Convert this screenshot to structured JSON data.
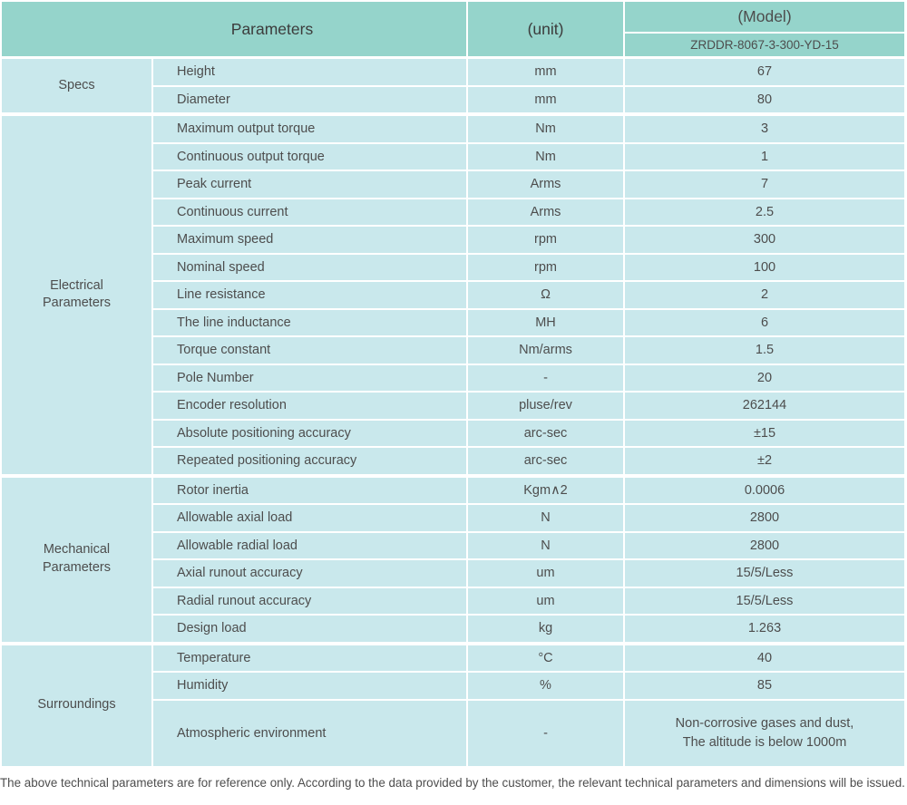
{
  "colors": {
    "header_bg": "#95d4cb",
    "cell_bg": "#c9e8ec",
    "border": "#ffffff",
    "text": "#4d4d4d",
    "header_text": "#3c3c3c"
  },
  "header": {
    "parameters_label": "Parameters",
    "unit_label": "(unit)",
    "model_label": "(Model)",
    "model_value": "ZRDDR-8067-3-300-YD-15"
  },
  "sections": [
    {
      "group_lines": [
        "Specs"
      ],
      "rows": [
        {
          "param": "Height",
          "unit": "mm",
          "value": "67"
        },
        {
          "param": "Diameter",
          "unit": "mm",
          "value": "80"
        }
      ]
    },
    {
      "group_lines": [
        "Electrical",
        "Parameters"
      ],
      "rows": [
        {
          "param": "Maximum output torque",
          "unit": "Nm",
          "value": "3"
        },
        {
          "param": "Continuous output torque",
          "unit": "Nm",
          "value": "1"
        },
        {
          "param": "Peak current",
          "unit": "Arms",
          "value": "7"
        },
        {
          "param": "Continuous current",
          "unit": "Arms",
          "value": "2.5"
        },
        {
          "param": "Maximum speed",
          "unit": "rpm",
          "value": "300"
        },
        {
          "param": "Nominal speed",
          "unit": "rpm",
          "value": "100"
        },
        {
          "param": "Line resistance",
          "unit": "Ω",
          "value": "2"
        },
        {
          "param": "The line inductance",
          "unit": "MH",
          "value": "6"
        },
        {
          "param": "Torque constant",
          "unit": "Nm/arms",
          "value": "1.5"
        },
        {
          "param": "Pole Number",
          "unit": "-",
          "value": "20"
        },
        {
          "param": "Encoder resolution",
          "unit": "pluse/rev",
          "value": "262144"
        },
        {
          "param": "Absolute positioning accuracy",
          "unit": "arc-sec",
          "value": "±15"
        },
        {
          "param": "Repeated positioning accuracy",
          "unit": "arc-sec",
          "value": "±2"
        }
      ]
    },
    {
      "group_lines": [
        "Mechanical",
        "Parameters"
      ],
      "rows": [
        {
          "param": "Rotor inertia",
          "unit": "Kgm∧2",
          "value": "0.0006"
        },
        {
          "param": "Allowable axial load",
          "unit": "N",
          "value": "2800"
        },
        {
          "param": "Allowable radial load",
          "unit": "N",
          "value": "2800"
        },
        {
          "param": "Axial runout accuracy",
          "unit": "um",
          "value": "15/5/Less"
        },
        {
          "param": "Radial runout accuracy",
          "unit": "um",
          "value": "15/5/Less"
        },
        {
          "param": "Design load",
          "unit": "kg",
          "value": "1.263"
        }
      ]
    },
    {
      "group_lines": [
        "Surroundings"
      ],
      "rows": [
        {
          "param": "Temperature",
          "unit": "°C",
          "value": "40"
        },
        {
          "param": "Humidity",
          "unit": "%",
          "value": "85"
        },
        {
          "param": "Atmospheric environment",
          "unit": "-",
          "tall": true,
          "value_lines": [
            "Non-corrosive gases and dust,",
            "The altitude is below 1000m"
          ]
        }
      ]
    }
  ],
  "footer": {
    "note": "The above technical parameters are for reference only. According to the data provided by the customer, the relevant technical parameters and dimensions will be issued."
  }
}
